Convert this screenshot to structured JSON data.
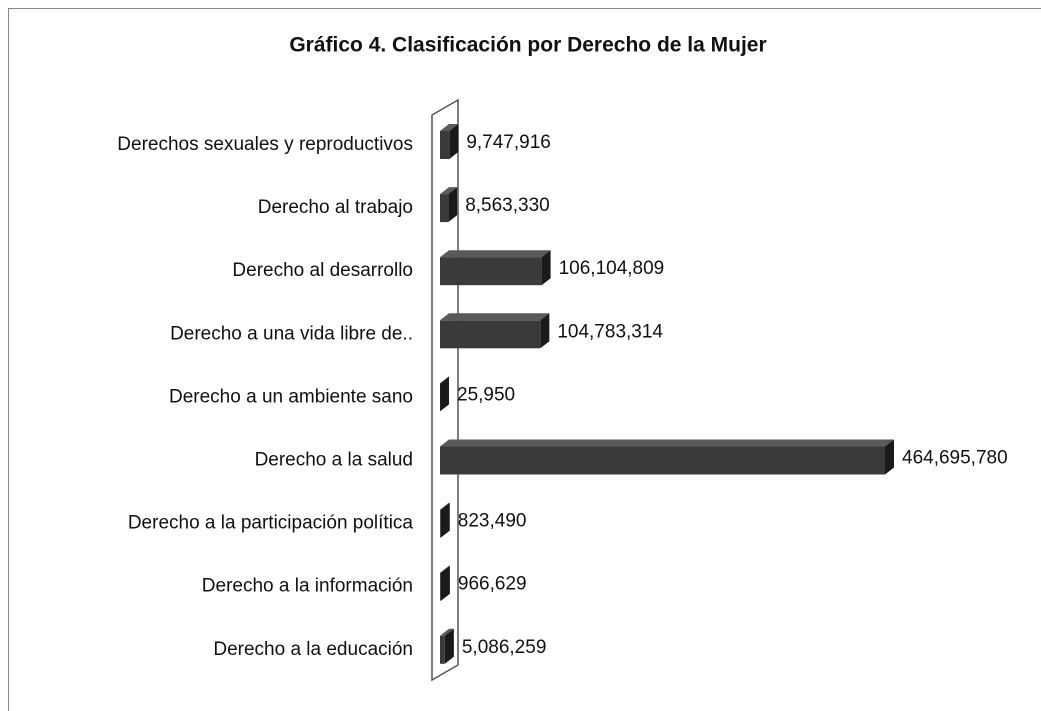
{
  "chart_data": {
    "type": "bar3d-horizontal",
    "title": "Gráfico 4. Clasificación por Derecho de la Mujer",
    "categories": [
      "Derechos sexuales y reproductivos",
      "Derecho al trabajo",
      "Derecho al desarrollo",
      "Derecho a una vida libre de..",
      "Derecho a un ambiente sano",
      "Derecho a la salud",
      "Derecho a la participación política",
      "Derecho a la información",
      "Derecho a la educación"
    ],
    "values": [
      9747916,
      8563330,
      106104809,
      104783314,
      25950,
      464695780,
      823490,
      966629,
      5086259
    ],
    "value_labels": [
      "9,747,916",
      "8,563,330",
      "106,104,809",
      "104,783,314",
      "25,950",
      "464,695,780",
      "823,490",
      "966,629",
      "5,086,259"
    ],
    "color": "#3a3a3a"
  }
}
